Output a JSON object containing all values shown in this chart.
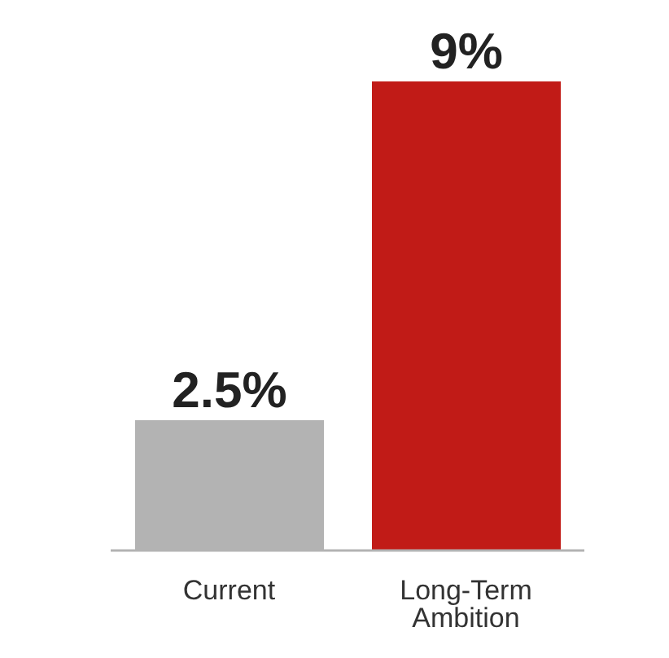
{
  "chart_data": {
    "type": "bar",
    "categories": [
      "Current",
      "Long-Term Ambition"
    ],
    "values": [
      2.5,
      9
    ],
    "colors": [
      "#b3b3b3",
      "#c11b17"
    ],
    "value_labels": [
      "2.5%",
      "9%"
    ],
    "grid": false,
    "legend": false
  }
}
